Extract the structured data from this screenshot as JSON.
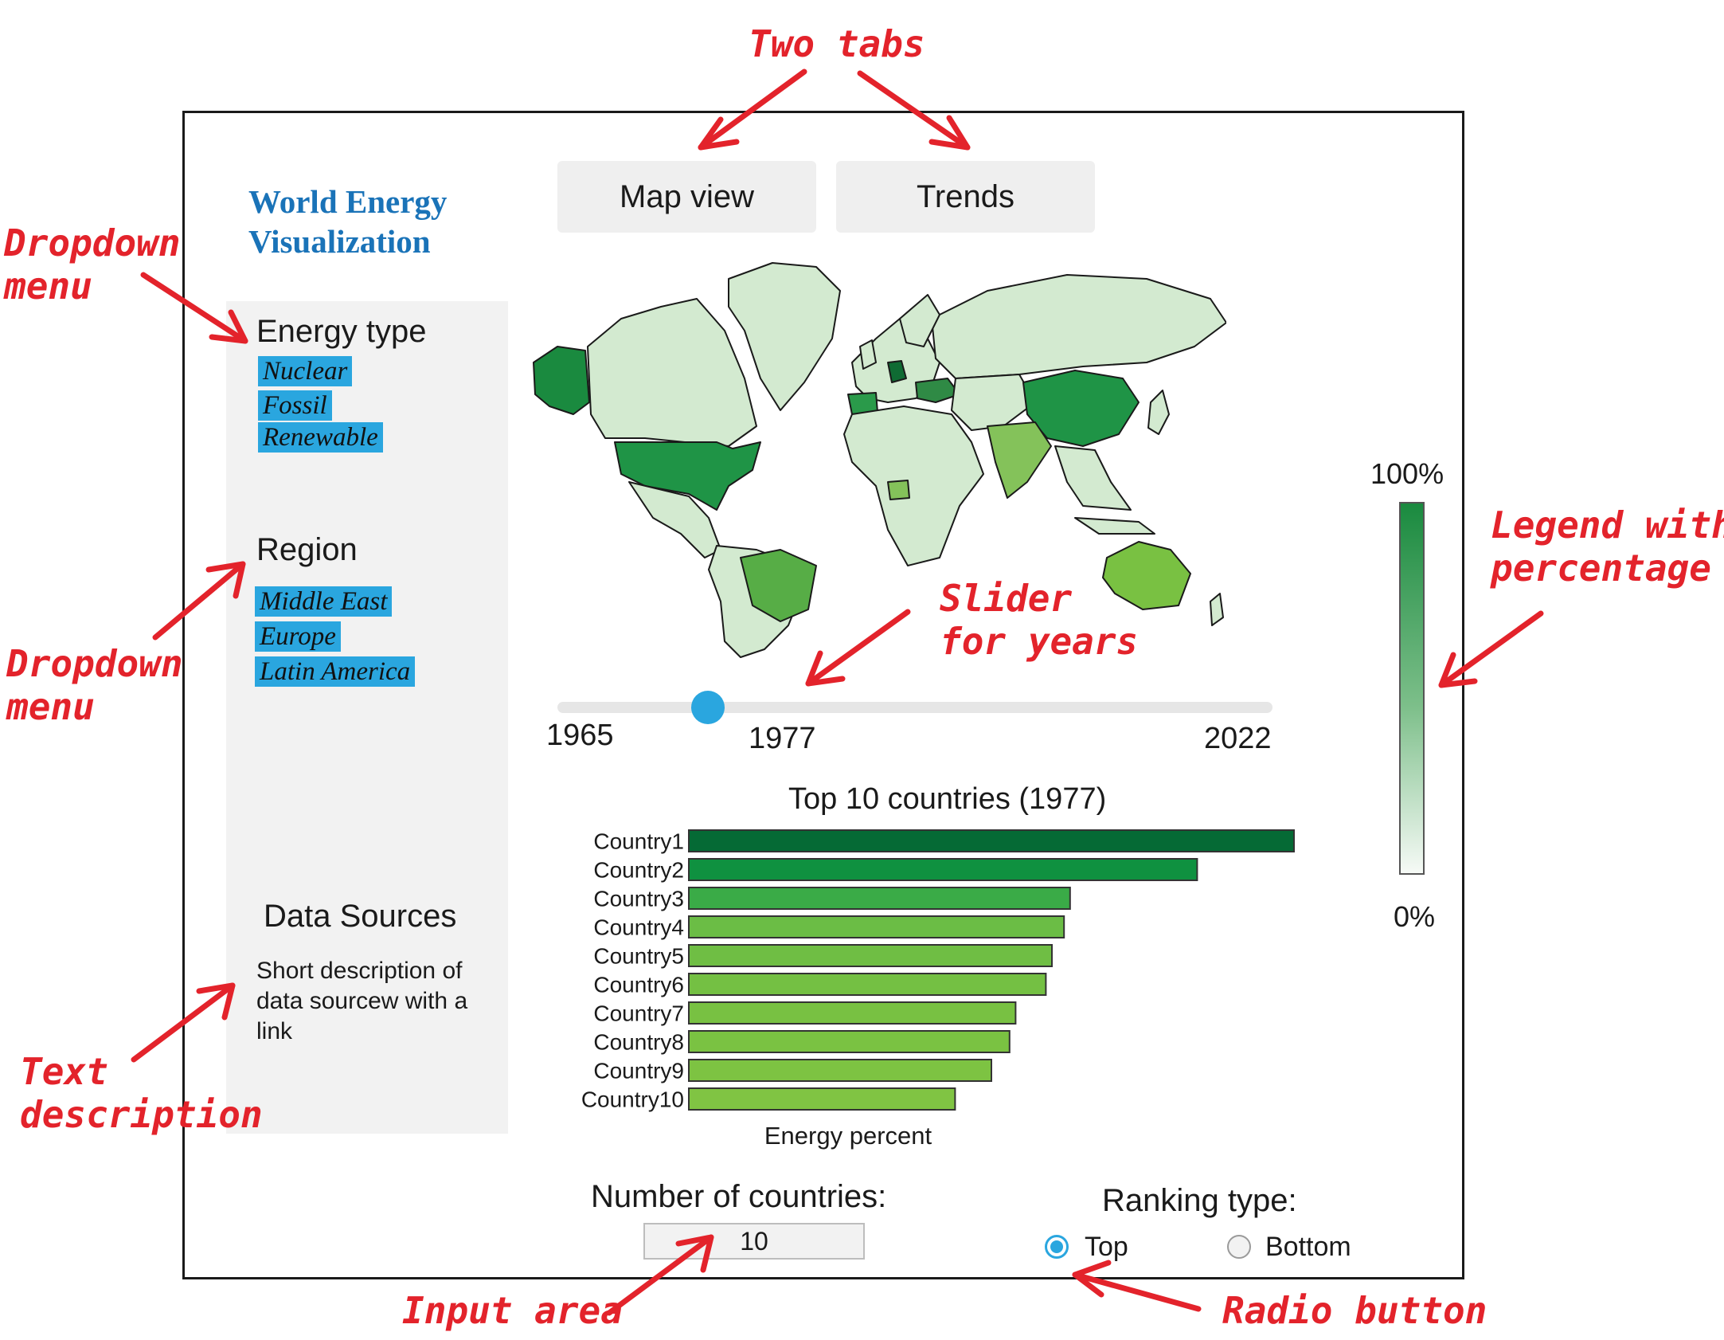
{
  "app": {
    "title": "World Energy Visualization"
  },
  "tabs": [
    {
      "label": "Map view"
    },
    {
      "label": "Trends"
    }
  ],
  "sidebar": {
    "energy_type": {
      "label": "Energy type",
      "options": [
        "Nuclear",
        "Fossil",
        "Renewable"
      ]
    },
    "region": {
      "label": "Region",
      "options": [
        "Middle East",
        "Europe",
        "Latin America"
      ]
    },
    "data_sources": {
      "heading": "Data Sources",
      "description": "Short description of data sourcew with a link"
    }
  },
  "slider": {
    "min": "1965",
    "value": "1977",
    "max": "2022",
    "value_num": 1977,
    "min_num": 1965,
    "max_num": 2022
  },
  "legend": {
    "max_label": "100%",
    "min_label": "0%"
  },
  "chart_data": {
    "type": "bar",
    "title": "Top 10 countries (1977)",
    "xlabel": "Energy percent",
    "ylabel": "",
    "categories": [
      "Country1",
      "Country2",
      "Country3",
      "Country4",
      "Country5",
      "Country6",
      "Country7",
      "Country8",
      "Country9",
      "Country10"
    ],
    "values": [
      100,
      84,
      63,
      62,
      60,
      59,
      54,
      53,
      50,
      44
    ],
    "colors": [
      "#056a35",
      "#0f9140",
      "#3aab47",
      "#6bbd45",
      "#6fbe44",
      "#74c043",
      "#78c142",
      "#7ac242",
      "#7dc342",
      "#80c443"
    ],
    "xlim": [
      0,
      100
    ]
  },
  "number_of_countries": {
    "label": "Number of countries:",
    "value": "10"
  },
  "ranking": {
    "label": "Ranking type:",
    "options": [
      {
        "label": "Top",
        "selected": true
      },
      {
        "label": "Bottom",
        "selected": false
      }
    ]
  },
  "annotations": {
    "two_tabs": "Two tabs",
    "dropdown_menu_1": [
      "Dropdown",
      "menu"
    ],
    "dropdown_menu_2": [
      "Dropdown",
      "menu"
    ],
    "slider_for_years": [
      "Slider",
      "for years"
    ],
    "legend_with_percentage": [
      "Legend with",
      "percentage"
    ],
    "text_description": [
      "Text",
      "description"
    ],
    "input_area": "Input area",
    "radio_button": "Radio button"
  }
}
